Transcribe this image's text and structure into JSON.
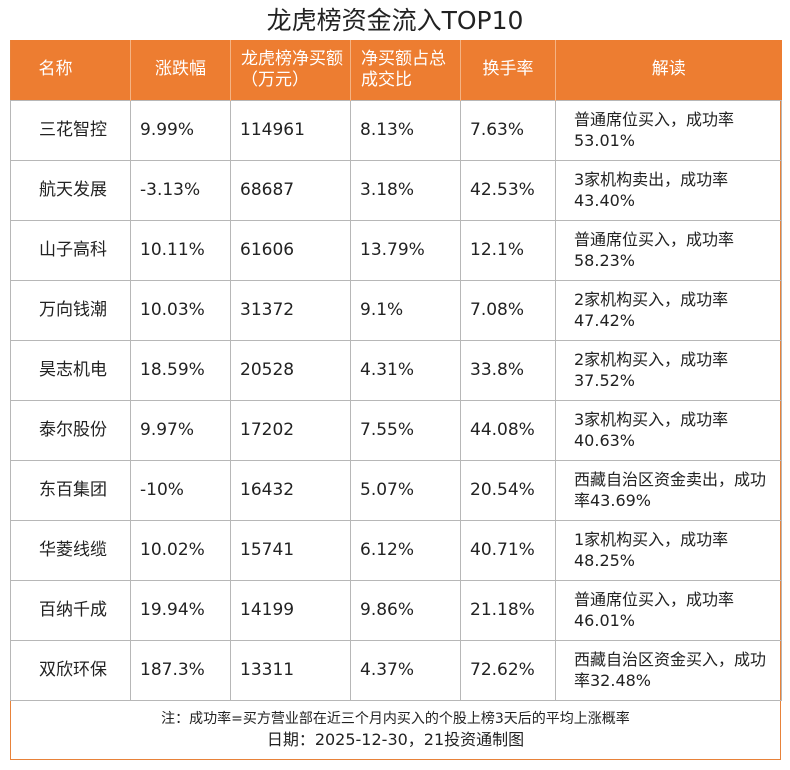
{
  "title": "龙虎榜资金流入TOP10",
  "columns": {
    "name": "名称",
    "change": "涨跌幅",
    "net_buy": "龙虎榜净买额（万元）",
    "net_ratio": "净买额占总成交比",
    "turnover": "换手率",
    "comment": "解读"
  },
  "rows": [
    {
      "name": "三花智控",
      "change": "9.99%",
      "net_buy": "114961",
      "net_ratio": "8.13%",
      "turnover": "7.63%",
      "comment": "普通席位买入，成功率53.01%"
    },
    {
      "name": "航天发展",
      "change": "-3.13%",
      "net_buy": "68687",
      "net_ratio": "3.18%",
      "turnover": "42.53%",
      "comment": "3家机构卖出，成功率43.40%"
    },
    {
      "name": "山子高科",
      "change": "10.11%",
      "net_buy": "61606",
      "net_ratio": "13.79%",
      "turnover": "12.1%",
      "comment": "普通席位买入，成功率58.23%"
    },
    {
      "name": "万向钱潮",
      "change": "10.03%",
      "net_buy": "31372",
      "net_ratio": "9.1%",
      "turnover": "7.08%",
      "comment": "2家机构买入，成功率47.42%"
    },
    {
      "name": "昊志机电",
      "change": "18.59%",
      "net_buy": "20528",
      "net_ratio": "4.31%",
      "turnover": "33.8%",
      "comment": "2家机构买入，成功率37.52%"
    },
    {
      "name": "泰尔股份",
      "change": "9.97%",
      "net_buy": "17202",
      "net_ratio": "7.55%",
      "turnover": "44.08%",
      "comment": "3家机构买入，成功率40.63%"
    },
    {
      "name": "东百集团",
      "change": "-10%",
      "net_buy": "16432",
      "net_ratio": "5.07%",
      "turnover": "20.54%",
      "comment": "西藏自治区资金卖出，成功率43.69%"
    },
    {
      "name": "华菱线缆",
      "change": "10.02%",
      "net_buy": "15741",
      "net_ratio": "6.12%",
      "turnover": "40.71%",
      "comment": "1家机构买入，成功率48.25%"
    },
    {
      "name": "百纳千成",
      "change": "19.94%",
      "net_buy": "14199",
      "net_ratio": "9.86%",
      "turnover": "21.18%",
      "comment": "普通席位买入，成功率46.01%"
    },
    {
      "name": "双欣环保",
      "change": "187.3%",
      "net_buy": "13311",
      "net_ratio": "4.37%",
      "turnover": "72.62%",
      "comment": "西藏自治区资金买入，成功率32.48%"
    }
  ],
  "footnote": "注：成功率=买方营业部在近三个月内买入的个股上榜3天后的平均上涨概率",
  "date_line": "日期：2025-12-30，21投资通制图",
  "colors": {
    "header_bg": "#ed7d31",
    "header_text": "#ffffff",
    "grid": "#b7b7b7"
  }
}
